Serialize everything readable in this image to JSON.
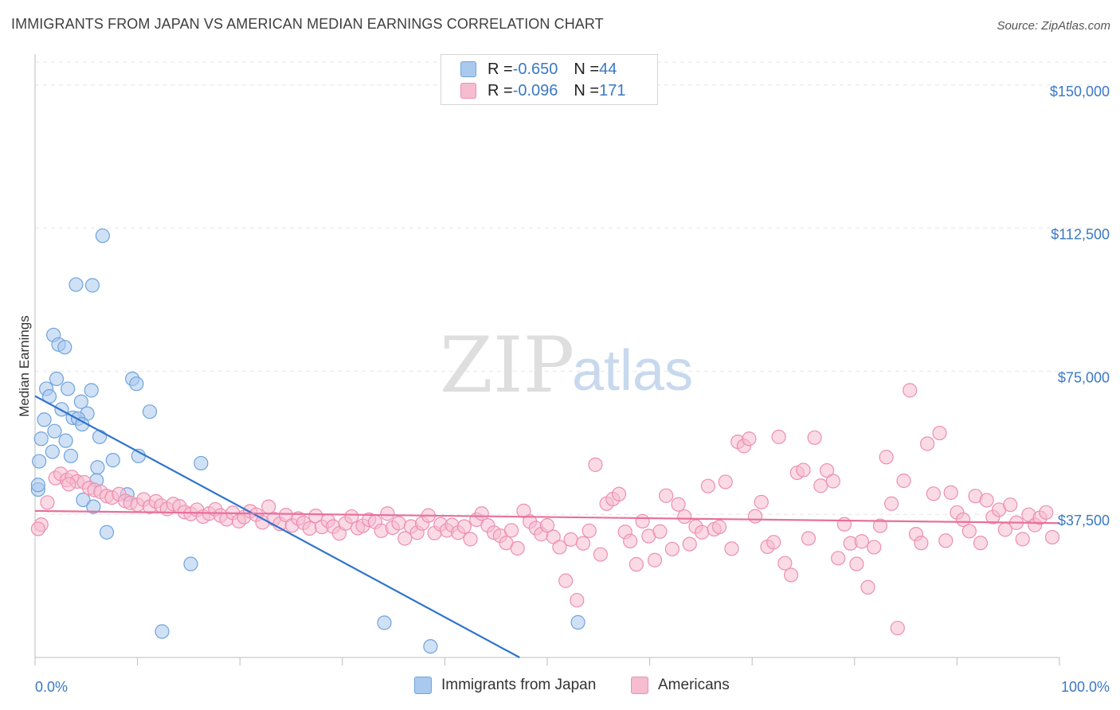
{
  "title": "IMMIGRANTS FROM JAPAN VS AMERICAN MEDIAN EARNINGS CORRELATION CHART",
  "source": "Source: ZipAtlas.com",
  "watermark": {
    "zip": "ZIP",
    "atlas": "atlas"
  },
  "legend": {
    "rows": [
      {
        "r_label": "R = ",
        "r_value": "-0.650",
        "n_label": "N = ",
        "n_value": "44",
        "color": "#aac9ee"
      },
      {
        "r_label": "R = ",
        "r_value": "-0.096",
        "n_label": "N = ",
        "n_value": "171",
        "color": "#f6bcd0"
      }
    ]
  },
  "bottom_legend": [
    {
      "label": "Immigrants from Japan",
      "color": "#aac9ee"
    },
    {
      "label": "Americans",
      "color": "#f6bcd0"
    }
  ],
  "chart_data": {
    "type": "scatter",
    "ylabel": "Median Earnings",
    "xlabel": "",
    "xlim": [
      0,
      100
    ],
    "ylim": [
      0,
      156000
    ],
    "x_tick_labels": [
      "0.0%",
      "100.0%"
    ],
    "y_ticks": [
      37500,
      75000,
      112500,
      150000
    ],
    "y_tick_labels": [
      "$37,500",
      "$75,000",
      "$112,500",
      "$150,000"
    ],
    "grid": true,
    "series": [
      {
        "name": "Immigrants from Japan",
        "color": "#6fa3dc",
        "fill": "#aac9ee",
        "trend": {
          "x": [
            0,
            47.3
          ],
          "y": [
            68500,
            0
          ],
          "color": "#2f73cf"
        },
        "points": [
          [
            6.6,
            110500
          ],
          [
            4.0,
            97700
          ],
          [
            5.6,
            97500
          ],
          [
            1.8,
            84500
          ],
          [
            2.3,
            82000
          ],
          [
            2.9,
            81300
          ],
          [
            2.1,
            73000
          ],
          [
            9.5,
            73000
          ],
          [
            9.9,
            71700
          ],
          [
            1.1,
            70400
          ],
          [
            3.2,
            70400
          ],
          [
            5.5,
            70000
          ],
          [
            1.4,
            68400
          ],
          [
            4.5,
            67000
          ],
          [
            2.6,
            65000
          ],
          [
            11.2,
            64400
          ],
          [
            5.1,
            63900
          ],
          [
            0.9,
            62300
          ],
          [
            3.7,
            62800
          ],
          [
            4.2,
            62600
          ],
          [
            4.6,
            61100
          ],
          [
            1.9,
            59300
          ],
          [
            0.6,
            57300
          ],
          [
            6.3,
            57800
          ],
          [
            3.0,
            56800
          ],
          [
            3.5,
            52800
          ],
          [
            7.6,
            51700
          ],
          [
            10.1,
            52800
          ],
          [
            0.4,
            51400
          ],
          [
            16.2,
            50900
          ],
          [
            6.1,
            49800
          ],
          [
            6.0,
            46400
          ],
          [
            0.3,
            44000
          ],
          [
            9.0,
            42700
          ],
          [
            4.7,
            41300
          ],
          [
            5.7,
            39500
          ],
          [
            7.0,
            32800
          ],
          [
            15.2,
            24500
          ],
          [
            12.4,
            6800
          ],
          [
            34.1,
            9100
          ],
          [
            38.6,
            2900
          ],
          [
            53.0,
            9200
          ],
          [
            0.3,
            45200
          ],
          [
            1.7,
            53900
          ]
        ]
      },
      {
        "name": "Americans",
        "color": "#ec8fb0",
        "fill": "#f6bcd0",
        "trend": {
          "x": [
            0,
            100
          ],
          "y": [
            38400,
            35200
          ],
          "color": "#e8709b"
        },
        "points": [
          [
            1.2,
            40600
          ],
          [
            2.0,
            47000
          ],
          [
            2.5,
            48100
          ],
          [
            3.1,
            46500
          ],
          [
            3.6,
            47300
          ],
          [
            4.1,
            46100
          ],
          [
            4.8,
            45900
          ],
          [
            5.3,
            44400
          ],
          [
            5.8,
            43900
          ],
          [
            6.4,
            43400
          ],
          [
            7.0,
            42300
          ],
          [
            7.5,
            41900
          ],
          [
            8.2,
            42800
          ],
          [
            8.8,
            41000
          ],
          [
            9.3,
            40500
          ],
          [
            10.0,
            40000
          ],
          [
            10.6,
            41400
          ],
          [
            11.2,
            39500
          ],
          [
            11.8,
            40900
          ],
          [
            12.3,
            39800
          ],
          [
            12.9,
            38900
          ],
          [
            13.5,
            40200
          ],
          [
            14.1,
            39600
          ],
          [
            14.6,
            38100
          ],
          [
            15.2,
            37600
          ],
          [
            15.8,
            38700
          ],
          [
            16.4,
            36900
          ],
          [
            17.0,
            37700
          ],
          [
            17.6,
            38800
          ],
          [
            18.1,
            37200
          ],
          [
            18.7,
            36200
          ],
          [
            19.3,
            37900
          ],
          [
            19.9,
            35700
          ],
          [
            20.4,
            36800
          ],
          [
            21.0,
            38300
          ],
          [
            21.6,
            37400
          ],
          [
            22.2,
            35400
          ],
          [
            22.8,
            39500
          ],
          [
            23.3,
            36300
          ],
          [
            23.9,
            35000
          ],
          [
            24.5,
            37300
          ],
          [
            25.1,
            34600
          ],
          [
            25.7,
            36400
          ],
          [
            26.2,
            35300
          ],
          [
            26.8,
            33800
          ],
          [
            27.4,
            37100
          ],
          [
            28.0,
            34200
          ],
          [
            28.6,
            35800
          ],
          [
            29.1,
            34300
          ],
          [
            29.7,
            32500
          ],
          [
            30.3,
            35100
          ],
          [
            30.9,
            36900
          ],
          [
            31.5,
            33900
          ],
          [
            32.0,
            34500
          ],
          [
            32.6,
            36100
          ],
          [
            33.2,
            35500
          ],
          [
            33.8,
            33200
          ],
          [
            34.4,
            37700
          ],
          [
            34.9,
            34000
          ],
          [
            35.5,
            35200
          ],
          [
            36.1,
            31200
          ],
          [
            36.7,
            34300
          ],
          [
            37.3,
            32700
          ],
          [
            37.8,
            35100
          ],
          [
            38.4,
            37200
          ],
          [
            39.0,
            32600
          ],
          [
            39.6,
            34900
          ],
          [
            40.2,
            33300
          ],
          [
            40.7,
            34700
          ],
          [
            41.3,
            32700
          ],
          [
            41.9,
            34300
          ],
          [
            42.5,
            31000
          ],
          [
            43.1,
            36100
          ],
          [
            43.6,
            37700
          ],
          [
            44.2,
            34600
          ],
          [
            44.8,
            32700
          ],
          [
            45.4,
            31900
          ],
          [
            46.0,
            30000
          ],
          [
            46.5,
            33300
          ],
          [
            47.1,
            28600
          ],
          [
            47.7,
            38400
          ],
          [
            48.3,
            35600
          ],
          [
            48.9,
            33900
          ],
          [
            49.4,
            32300
          ],
          [
            50.0,
            34600
          ],
          [
            50.6,
            31600
          ],
          [
            51.2,
            28900
          ],
          [
            51.8,
            20100
          ],
          [
            52.3,
            30900
          ],
          [
            52.9,
            15000
          ],
          [
            53.5,
            29900
          ],
          [
            54.1,
            33200
          ],
          [
            54.7,
            50500
          ],
          [
            55.2,
            27000
          ],
          [
            55.8,
            40300
          ],
          [
            56.4,
            41500
          ],
          [
            57.0,
            42800
          ],
          [
            57.6,
            32900
          ],
          [
            58.1,
            30500
          ],
          [
            58.7,
            24400
          ],
          [
            59.3,
            35700
          ],
          [
            59.9,
            31800
          ],
          [
            60.5,
            25500
          ],
          [
            61.0,
            33000
          ],
          [
            61.6,
            42400
          ],
          [
            62.2,
            28400
          ],
          [
            62.8,
            40100
          ],
          [
            63.4,
            36900
          ],
          [
            63.9,
            29700
          ],
          [
            64.5,
            34300
          ],
          [
            65.1,
            32800
          ],
          [
            65.7,
            44900
          ],
          [
            66.3,
            33600
          ],
          [
            66.8,
            34200
          ],
          [
            67.4,
            46000
          ],
          [
            68.0,
            28500
          ],
          [
            68.6,
            56500
          ],
          [
            69.2,
            55400
          ],
          [
            69.7,
            57300
          ],
          [
            70.3,
            37000
          ],
          [
            70.9,
            40700
          ],
          [
            71.5,
            29000
          ],
          [
            72.1,
            30200
          ],
          [
            72.6,
            57800
          ],
          [
            73.2,
            24700
          ],
          [
            73.8,
            21600
          ],
          [
            74.4,
            48400
          ],
          [
            75.0,
            49100
          ],
          [
            75.5,
            31200
          ],
          [
            76.1,
            57600
          ],
          [
            76.7,
            45000
          ],
          [
            77.3,
            49000
          ],
          [
            77.9,
            46200
          ],
          [
            78.4,
            26000
          ],
          [
            79.0,
            34900
          ],
          [
            79.6,
            29900
          ],
          [
            80.2,
            24500
          ],
          [
            80.7,
            30400
          ],
          [
            81.3,
            18400
          ],
          [
            81.9,
            28900
          ],
          [
            82.5,
            34500
          ],
          [
            83.1,
            52500
          ],
          [
            83.6,
            40300
          ],
          [
            84.2,
            7700
          ],
          [
            84.8,
            46300
          ],
          [
            85.4,
            70000
          ],
          [
            86.0,
            32300
          ],
          [
            86.5,
            30000
          ],
          [
            87.1,
            56000
          ],
          [
            87.7,
            42900
          ],
          [
            88.3,
            58800
          ],
          [
            88.9,
            30600
          ],
          [
            89.4,
            43200
          ],
          [
            90.0,
            38000
          ],
          [
            90.6,
            36100
          ],
          [
            91.2,
            33100
          ],
          [
            91.8,
            42300
          ],
          [
            92.3,
            30000
          ],
          [
            92.9,
            41200
          ],
          [
            93.5,
            36800
          ],
          [
            94.1,
            38700
          ],
          [
            94.7,
            33500
          ],
          [
            95.2,
            40000
          ],
          [
            95.8,
            35300
          ],
          [
            96.4,
            31000
          ],
          [
            97.0,
            37400
          ],
          [
            97.6,
            34700
          ],
          [
            98.1,
            36600
          ],
          [
            98.7,
            38000
          ],
          [
            99.3,
            31500
          ],
          [
            0.6,
            34800
          ],
          [
            0.3,
            33700
          ],
          [
            3.3,
            45400
          ]
        ]
      }
    ]
  }
}
